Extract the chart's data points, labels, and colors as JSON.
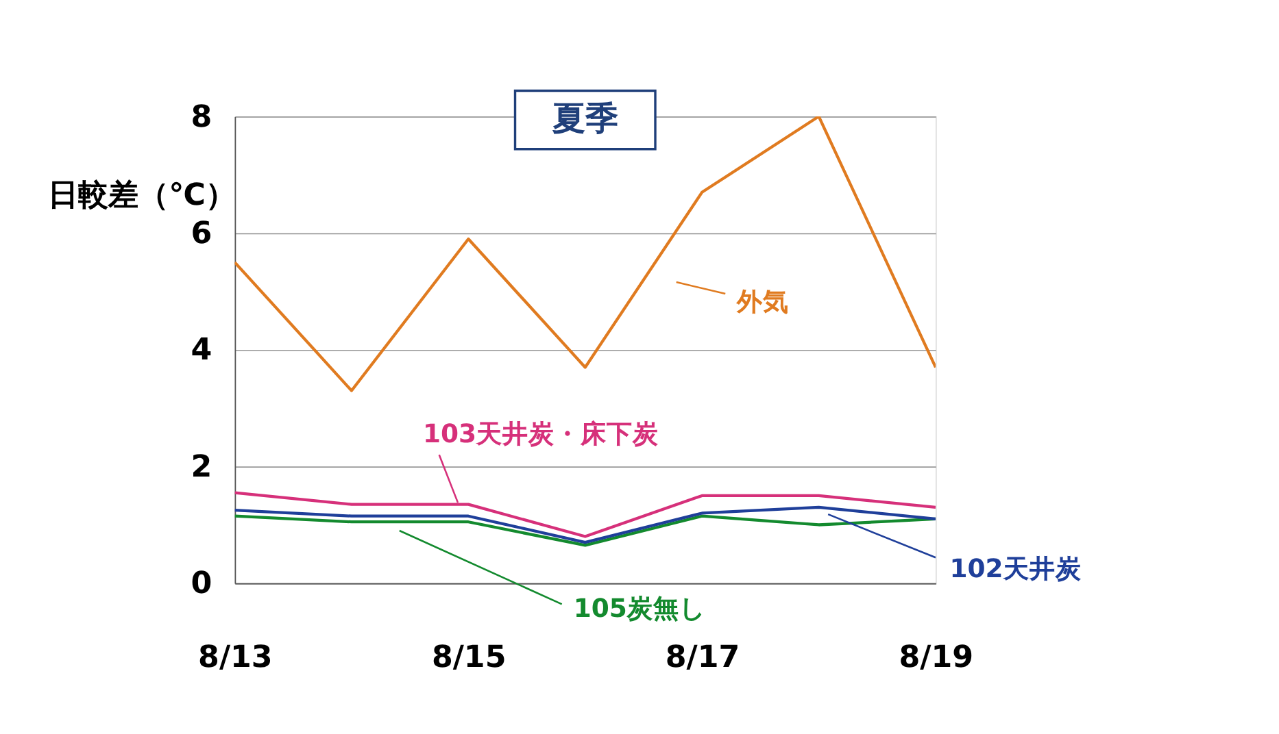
{
  "chart_data": {
    "type": "line",
    "title": "夏季",
    "ylabel": "日較差（℃）",
    "categories": [
      "8/13",
      null,
      "8/15",
      null,
      "8/17",
      null,
      "8/19"
    ],
    "ylim": [
      0,
      8
    ],
    "yticks": [
      0,
      2,
      4,
      6,
      8
    ],
    "grid": "y",
    "marker": "none",
    "line_style": "solid",
    "series": [
      {
        "name": "外気",
        "color": "#e07b20",
        "values": [
          5.5,
          3.3,
          5.9,
          3.7,
          6.7,
          8,
          3.7
        ]
      },
      {
        "name": "103天井炭・床下炭",
        "color": "#d6307a",
        "values": [
          1.55,
          1.35,
          1.35,
          0.8,
          1.5,
          1.5,
          1.3
        ]
      },
      {
        "name": "105炭無し",
        "color": "#138a2e",
        "values": [
          1.15,
          1.05,
          1.05,
          0.65,
          1.15,
          1.0,
          1.1
        ]
      },
      {
        "name": "102天井炭",
        "color": "#1f3f9a",
        "values": [
          1.25,
          1.15,
          1.15,
          0.7,
          1.2,
          1.3,
          1.1
        ]
      }
    ]
  }
}
